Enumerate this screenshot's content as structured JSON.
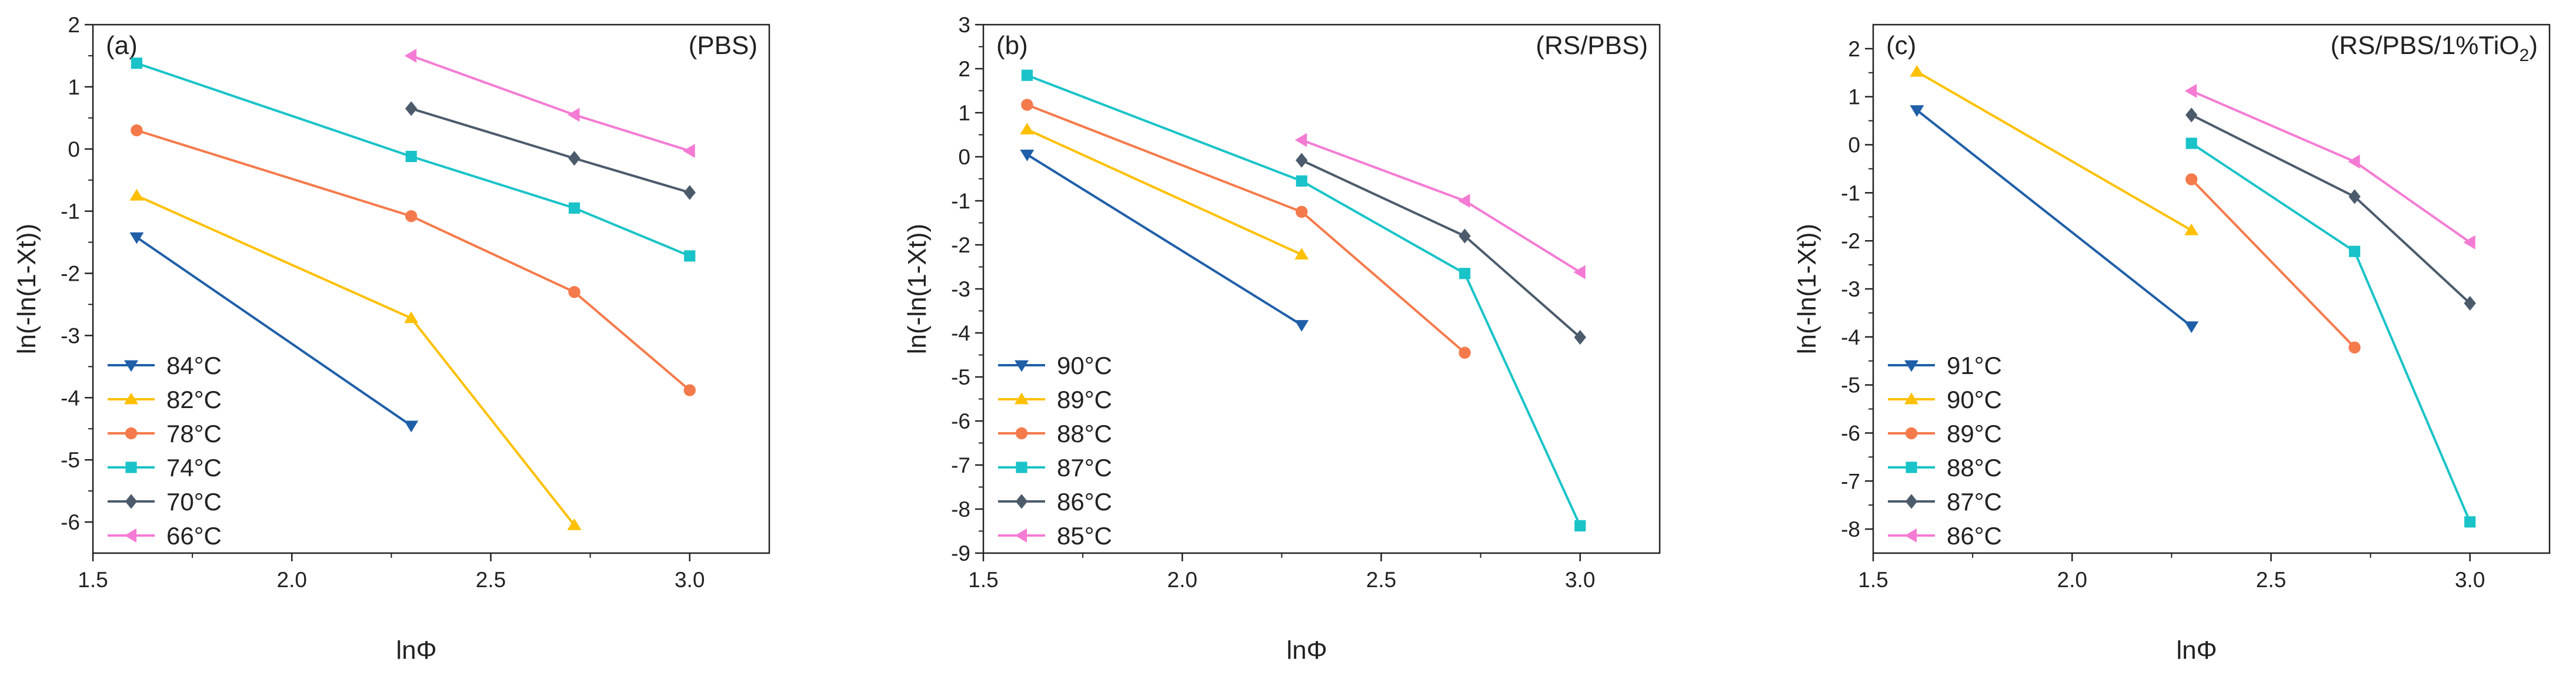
{
  "chart_data": [
    {
      "type": "line",
      "panel_label": "(a)",
      "title": "(PBS)",
      "title_sub": "",
      "xlabel": "lnΦ",
      "ylabel": "ln(-ln(1-Xt))",
      "xlim": [
        1.5,
        3.2
      ],
      "ylim": [
        -6.5,
        2
      ],
      "xticks": [
        1.5,
        2.0,
        2.5,
        3.0
      ],
      "xtick_labels": [
        "1.5",
        "2.0",
        "2.5",
        "3.0"
      ],
      "yticks": [
        -6,
        -5,
        -4,
        -3,
        -2,
        -1,
        0,
        1,
        2
      ],
      "ytick_labels": [
        "-6",
        "-5",
        "-4",
        "-3",
        "-2",
        "-1",
        "0",
        "1",
        "2"
      ],
      "legend_position": "bottom-left",
      "series": [
        {
          "name": "84°C",
          "color": "#1f5fa8",
          "marker": "triangle-down",
          "x": [
            1.61,
            2.3
          ],
          "y": [
            -1.42,
            -4.45
          ]
        },
        {
          "name": "82°C",
          "color": "#ffc000",
          "marker": "triangle-up",
          "x": [
            1.61,
            2.3,
            2.71
          ],
          "y": [
            -0.75,
            -2.72,
            -6.05
          ]
        },
        {
          "name": "78°C",
          "color": "#f57a4b",
          "marker": "circle",
          "x": [
            1.61,
            2.3,
            2.71,
            3.0
          ],
          "y": [
            0.3,
            -1.08,
            -2.3,
            -3.88
          ]
        },
        {
          "name": "74°C",
          "color": "#19c3c8",
          "marker": "square",
          "x": [
            1.61,
            2.3,
            2.71,
            3.0
          ],
          "y": [
            1.38,
            -0.12,
            -0.95,
            -1.72
          ]
        },
        {
          "name": "70°C",
          "color": "#4c5b6c",
          "marker": "diamond",
          "x": [
            2.3,
            2.71,
            3.0
          ],
          "y": [
            0.65,
            -0.15,
            -0.7
          ]
        },
        {
          "name": "66°C",
          "color": "#f47bd3",
          "marker": "triangle-left",
          "x": [
            2.3,
            2.71,
            3.0
          ],
          "y": [
            1.5,
            0.55,
            -0.03
          ]
        }
      ]
    },
    {
      "type": "line",
      "panel_label": "(b)",
      "title": "(RS/PBS)",
      "title_sub": "",
      "xlabel": "lnΦ",
      "ylabel": "ln(-ln(1-Xt))",
      "xlim": [
        1.5,
        3.2
      ],
      "ylim": [
        -9,
        3
      ],
      "xticks": [
        1.5,
        2.0,
        2.5,
        3.0
      ],
      "xtick_labels": [
        "1.5",
        "2.0",
        "2.5",
        "3.0"
      ],
      "yticks": [
        -9,
        -8,
        -7,
        -6,
        -5,
        -4,
        -3,
        -2,
        -1,
        0,
        1,
        2,
        3
      ],
      "ytick_labels": [
        "-9",
        "-8",
        "-7",
        "-6",
        "-5",
        "-4",
        "-3",
        "-2",
        "-1",
        "0",
        "1",
        "2",
        "3"
      ],
      "legend_position": "bottom-left",
      "series": [
        {
          "name": "90°C",
          "color": "#1f5fa8",
          "marker": "triangle-down",
          "x": [
            1.61,
            2.3
          ],
          "y": [
            0.05,
            -3.82
          ]
        },
        {
          "name": "89°C",
          "color": "#ffc000",
          "marker": "triangle-up",
          "x": [
            1.61,
            2.3
          ],
          "y": [
            0.62,
            -2.22
          ]
        },
        {
          "name": "88°C",
          "color": "#f57a4b",
          "marker": "circle",
          "x": [
            1.61,
            2.3,
            2.71
          ],
          "y": [
            1.18,
            -1.25,
            -4.45
          ]
        },
        {
          "name": "87°C",
          "color": "#19c3c8",
          "marker": "square",
          "x": [
            1.61,
            2.3,
            2.71,
            3.0
          ],
          "y": [
            1.85,
            -0.55,
            -2.65,
            -8.38
          ]
        },
        {
          "name": "86°C",
          "color": "#4c5b6c",
          "marker": "diamond",
          "x": [
            2.3,
            2.71,
            3.0
          ],
          "y": [
            -0.08,
            -1.8,
            -4.1
          ]
        },
        {
          "name": "85°C",
          "color": "#f47bd3",
          "marker": "triangle-left",
          "x": [
            2.3,
            2.71,
            3.0
          ],
          "y": [
            0.38,
            -1.0,
            -2.62
          ]
        }
      ]
    },
    {
      "type": "line",
      "panel_label": "(c)",
      "title": "(RS/PBS/1%TiO",
      "title_sub": "2",
      "title_end": ")",
      "xlabel": "lnΦ",
      "ylabel": "ln(-ln(1-Xt))",
      "xlim": [
        1.5,
        3.2
      ],
      "ylim": [
        -8.5,
        2.5
      ],
      "xticks": [
        1.5,
        2.0,
        2.5,
        3.0
      ],
      "xtick_labels": [
        "1.5",
        "2.0",
        "2.5",
        "3.0"
      ],
      "yticks": [
        -8,
        -7,
        -6,
        -5,
        -4,
        -3,
        -2,
        -1,
        0,
        1,
        2
      ],
      "ytick_labels": [
        "-8",
        "-7",
        "-6",
        "-5",
        "-4",
        "-3",
        "-2",
        "-1",
        "0",
        "1",
        "2"
      ],
      "legend_position": "bottom-left",
      "series": [
        {
          "name": "91°C",
          "color": "#1f5fa8",
          "marker": "triangle-down",
          "x": [
            1.61,
            2.3
          ],
          "y": [
            0.72,
            -3.78
          ]
        },
        {
          "name": "90°C",
          "color": "#ffc000",
          "marker": "triangle-up",
          "x": [
            1.61,
            2.3
          ],
          "y": [
            1.52,
            -1.78
          ]
        },
        {
          "name": "89°C",
          "color": "#f57a4b",
          "marker": "circle",
          "x": [
            2.3,
            2.71
          ],
          "y": [
            -0.72,
            -4.22
          ]
        },
        {
          "name": "88°C",
          "color": "#19c3c8",
          "marker": "square",
          "x": [
            2.3,
            2.71,
            3.0
          ],
          "y": [
            0.03,
            -2.22,
            -7.85
          ]
        },
        {
          "name": "87°C",
          "color": "#4c5b6c",
          "marker": "diamond",
          "x": [
            2.3,
            2.71,
            3.0
          ],
          "y": [
            0.62,
            -1.08,
            -3.3
          ]
        },
        {
          "name": "86°C",
          "color": "#f47bd3",
          "marker": "triangle-left",
          "x": [
            2.3,
            2.71,
            3.0
          ],
          "y": [
            1.12,
            -0.35,
            -2.03
          ]
        }
      ]
    }
  ]
}
